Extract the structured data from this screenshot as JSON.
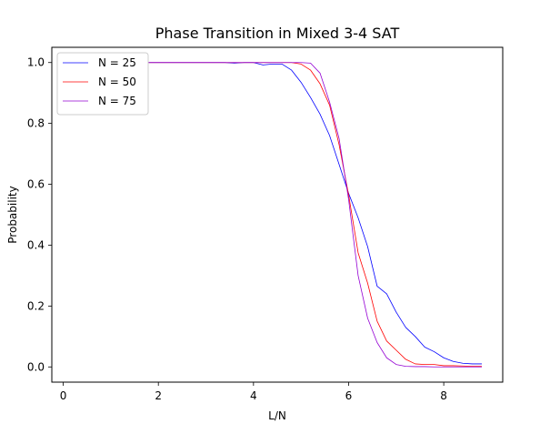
{
  "chart_data": {
    "type": "line",
    "title": "Phase Transition in Mixed 3-4 SAT",
    "xlabel": "L/N",
    "ylabel": "Probability",
    "xlim": [
      -0.24,
      9.24
    ],
    "ylim": [
      -0.05,
      1.05
    ],
    "xticks": [
      0,
      2,
      4,
      6,
      8
    ],
    "yticks": [
      0.0,
      0.2,
      0.4,
      0.6,
      0.8,
      1.0
    ],
    "xtick_labels": [
      "0",
      "2",
      "4",
      "6",
      "8"
    ],
    "ytick_labels": [
      "0.0",
      "0.2",
      "0.4",
      "0.6",
      "0.8",
      "1.0"
    ],
    "grid": false,
    "legend_position": "top-left",
    "x": [
      0.0,
      0.2,
      0.4,
      0.6,
      0.8,
      1.0,
      1.2,
      1.4,
      1.6,
      1.8,
      2.0,
      2.2,
      2.4,
      2.6,
      2.8,
      3.0,
      3.2,
      3.4,
      3.6,
      3.8,
      4.0,
      4.2,
      4.4,
      4.6,
      4.8,
      5.0,
      5.2,
      5.4,
      5.6,
      5.8,
      6.0,
      6.2,
      6.4,
      6.6,
      6.8,
      7.0,
      7.2,
      7.4,
      7.6,
      7.8,
      8.0,
      8.2,
      8.4,
      8.6,
      8.8
    ],
    "series": [
      {
        "name": "N = 25",
        "color": "#0000ff",
        "values": [
          1.0,
          1.0,
          1.0,
          1.0,
          1.0,
          1.0,
          1.0,
          1.0,
          1.0,
          1.0,
          1.0,
          1.0,
          1.0,
          1.0,
          1.0,
          1.0,
          1.0,
          1.0,
          0.998,
          1.0,
          1.0,
          0.992,
          0.995,
          0.995,
          0.975,
          0.935,
          0.885,
          0.83,
          0.76,
          0.665,
          0.57,
          0.49,
          0.395,
          0.265,
          0.24,
          0.18,
          0.13,
          0.1,
          0.065,
          0.05,
          0.03,
          0.018,
          0.012,
          0.01,
          0.01
        ]
      },
      {
        "name": "N = 50",
        "color": "#ff0000",
        "values": [
          1.0,
          1.0,
          1.0,
          1.0,
          1.0,
          1.0,
          1.0,
          1.0,
          1.0,
          1.0,
          1.0,
          1.0,
          1.0,
          1.0,
          1.0,
          1.0,
          1.0,
          1.0,
          1.0,
          1.0,
          1.0,
          1.0,
          1.0,
          1.0,
          1.0,
          0.995,
          0.975,
          0.93,
          0.86,
          0.73,
          0.565,
          0.375,
          0.275,
          0.15,
          0.085,
          0.055,
          0.025,
          0.01,
          0.008,
          0.008,
          0.004,
          0.004,
          0.003,
          0.002,
          0.002
        ]
      },
      {
        "name": "N = 75",
        "color": "#9400d3",
        "values": [
          1.0,
          1.0,
          1.0,
          1.0,
          1.0,
          1.0,
          1.0,
          1.0,
          1.0,
          1.0,
          1.0,
          1.0,
          1.0,
          1.0,
          1.0,
          1.0,
          1.0,
          1.0,
          1.0,
          1.0,
          1.0,
          1.0,
          1.0,
          1.0,
          1.0,
          1.0,
          0.998,
          0.965,
          0.87,
          0.75,
          0.55,
          0.3,
          0.16,
          0.08,
          0.03,
          0.008,
          0.002,
          0.001,
          0.001,
          0.0,
          0.0,
          0.0,
          0.0,
          0.0,
          0.0
        ]
      }
    ]
  }
}
